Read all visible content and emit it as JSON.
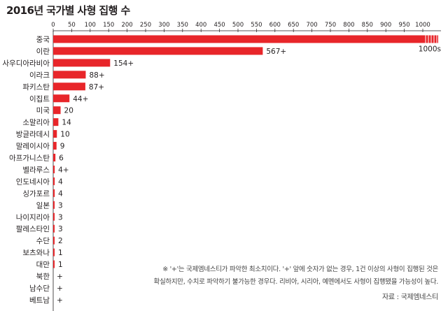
{
  "title": "2016년 국가별 사형 집행 수",
  "note_line1": "※ '+'는 국제엠네스티가 파악한 최소치이다. '+' 앞에 숫자가 없는 경우, 1건 이상의 사형이 집행된 것은",
  "note_line2": "확실하지만, 수치로 파악하기 불가능한 경우다. 리비아, 시리아, 예멘에서도 사형이 집행됐을 가능성이 높다.",
  "source": "자료 : 국제엠네스티",
  "chart_data": {
    "type": "bar",
    "orientation": "horizontal",
    "bar_color": "#e8262a",
    "xlim": [
      0,
      1000
    ],
    "x_ticks": [
      0,
      50,
      100,
      150,
      200,
      250,
      300,
      350,
      400,
      450,
      500,
      550,
      600,
      650,
      700,
      750,
      800,
      850,
      900,
      950,
      1000
    ],
    "categories": [
      "중국",
      "이란",
      "사우디아라비아",
      "이라크",
      "파키스탄",
      "이집트",
      "미국",
      "소말리아",
      "방글라데시",
      "말레이시아",
      "아프가니스탄",
      "벨라루스",
      "인도네시아",
      "싱가포르",
      "일본",
      "나이지리아",
      "팔레스타인",
      "수단",
      "보츠와나",
      "대만",
      "북한",
      "남수단",
      "베트남"
    ],
    "values": [
      1000,
      567,
      154,
      88,
      87,
      44,
      20,
      14,
      10,
      9,
      6,
      4,
      4,
      4,
      3,
      3,
      3,
      2,
      1,
      1,
      0,
      0,
      0
    ],
    "labels": [
      "1000s",
      "567+",
      "154+",
      "88+",
      "87+",
      "44+",
      "20",
      "14",
      "10",
      "9",
      "6",
      "4+",
      "4",
      "4",
      "3",
      "3",
      "3",
      "2",
      "1",
      "1",
      "+",
      "+",
      "+"
    ]
  }
}
